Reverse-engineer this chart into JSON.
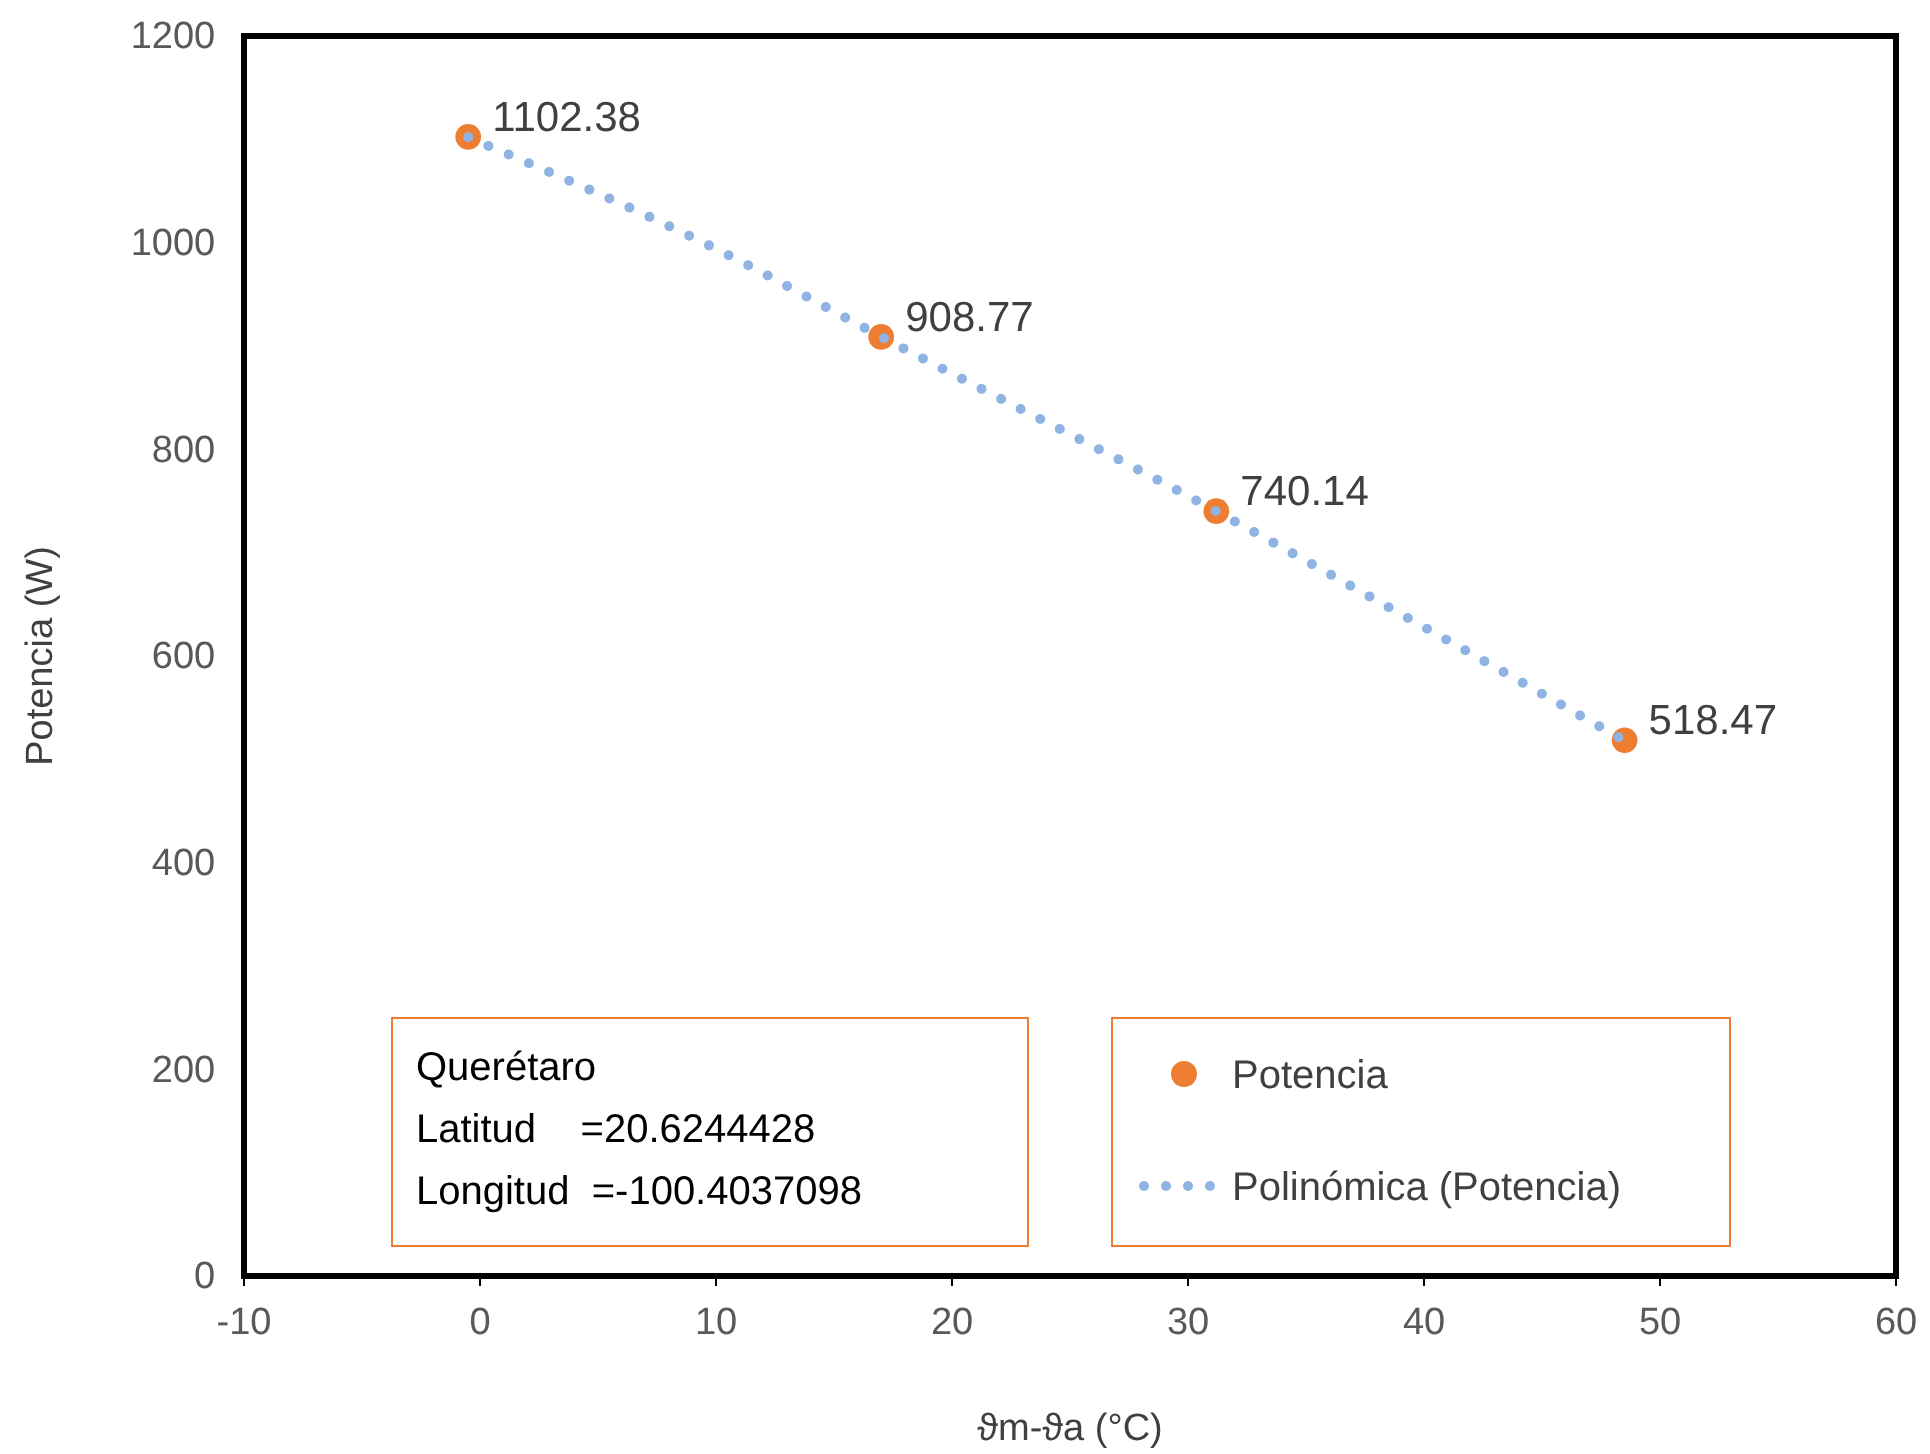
{
  "chart_data": {
    "type": "scatter",
    "xlabel": "ϑm-ϑa (°C)",
    "ylabel": "Potencia (W)",
    "xlim": [
      -10,
      60
    ],
    "xticks": [
      -10,
      0,
      10,
      20,
      30,
      40,
      50,
      60
    ],
    "ylim": [
      0,
      1200
    ],
    "yticks": [
      0,
      200,
      400,
      600,
      800,
      1000,
      1200
    ],
    "grid": false,
    "legend": "bottom right",
    "series": [
      {
        "name": "Potencia",
        "type": "scatter",
        "marker": "circle",
        "color": "#ed7d31",
        "x": [
          -0.5,
          17.0,
          31.2,
          48.5
        ],
        "values": [
          1102.38,
          908.77,
          740.14,
          518.47
        ],
        "value_labels": [
          "1102.38",
          "908.77",
          "740.14",
          "518.47"
        ]
      },
      {
        "name": "Polinómica (Potencia)",
        "type": "line",
        "line_style": "dotted",
        "color": "#8fb4e3",
        "x": [
          -0.5,
          10,
          17.0,
          31.2,
          40,
          48.5
        ],
        "values": [
          1102,
          994,
          909,
          740,
          628,
          518
        ]
      }
    ],
    "annotations": [
      "Querétaro",
      "Latitud    =20.6244428",
      "Longitud  =-100.4037098"
    ]
  }
}
